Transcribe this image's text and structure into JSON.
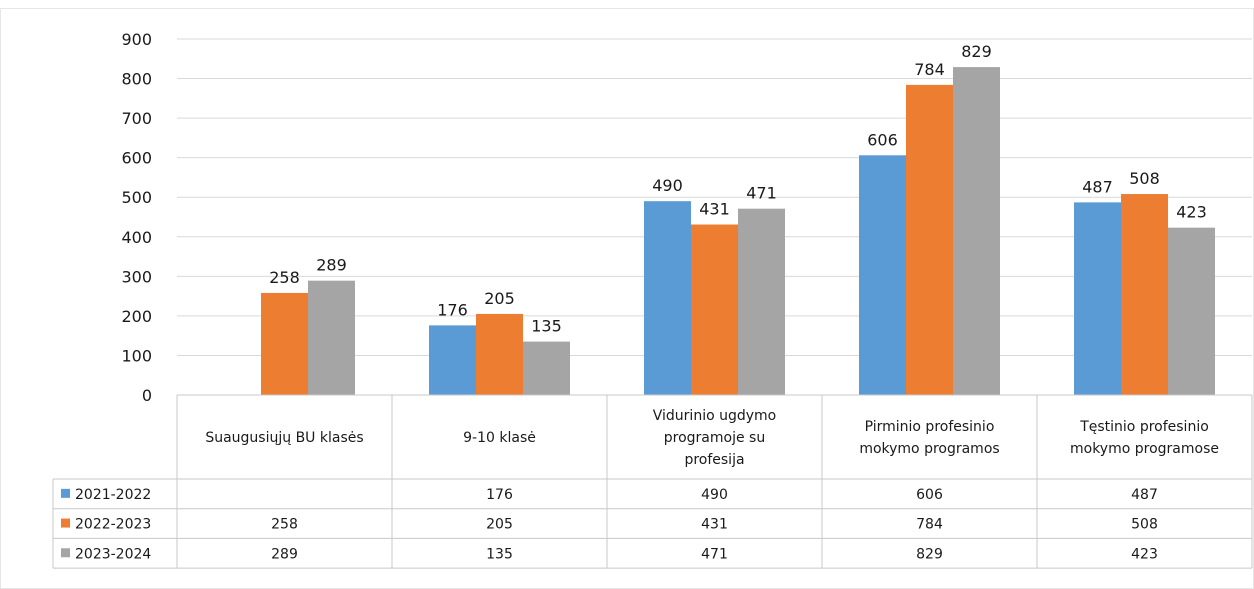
{
  "chart_data": {
    "type": "bar",
    "categories": [
      [
        "Suaugusiųjų BU klasės"
      ],
      [
        "9-10 klasė"
      ],
      [
        "Vidurinio ugdymo",
        "programoje su",
        "profesija"
      ],
      [
        "Pirminio profesinio",
        "mokymo programos"
      ],
      [
        "Tęstinio profesinio",
        "mokymo programose"
      ]
    ],
    "series": [
      {
        "name": "2021-2022",
        "color": "#5b9bd5",
        "values": [
          null,
          176,
          490,
          606,
          487
        ]
      },
      {
        "name": "2022-2023",
        "color": "#ed7d31",
        "values": [
          258,
          205,
          431,
          784,
          508
        ]
      },
      {
        "name": "2023-2024",
        "color": "#a5a5a5",
        "values": [
          289,
          135,
          471,
          829,
          423
        ]
      }
    ],
    "yticks": [
      "0",
      "100",
      "200",
      "300",
      "400",
      "500",
      "600",
      "700",
      "800",
      "900"
    ],
    "ylim": [
      0,
      900
    ],
    "grid": true,
    "legend": "data-table"
  }
}
